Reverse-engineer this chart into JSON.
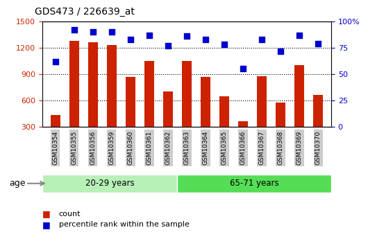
{
  "title": "GDS473 / 226639_at",
  "samples": [
    "GSM10354",
    "GSM10355",
    "GSM10356",
    "GSM10359",
    "GSM10360",
    "GSM10361",
    "GSM10362",
    "GSM10363",
    "GSM10364",
    "GSM10365",
    "GSM10366",
    "GSM10367",
    "GSM10368",
    "GSM10369",
    "GSM10370"
  ],
  "counts": [
    430,
    1280,
    1265,
    1230,
    870,
    1050,
    700,
    1050,
    870,
    645,
    365,
    875,
    575,
    1000,
    665
  ],
  "percentiles": [
    62,
    92,
    90,
    90,
    83,
    87,
    77,
    86,
    83,
    78,
    55,
    83,
    72,
    87,
    79
  ],
  "group1_label": "20-29 years",
  "group2_label": "65-71 years",
  "group1_count": 7,
  "group2_count": 8,
  "bar_color": "#cc2200",
  "dot_color": "#0000cc",
  "group1_bg": "#b8f0b8",
  "group2_bg": "#55dd55",
  "tick_bg": "#cccccc",
  "ylim_left": [
    300,
    1500
  ],
  "ylim_right": [
    0,
    100
  ],
  "yticks_left": [
    300,
    600,
    900,
    1200,
    1500
  ],
  "yticks_right": [
    0,
    25,
    50,
    75,
    100
  ],
  "legend_count_label": "count",
  "legend_pct_label": "percentile rank within the sample",
  "age_label": "age"
}
